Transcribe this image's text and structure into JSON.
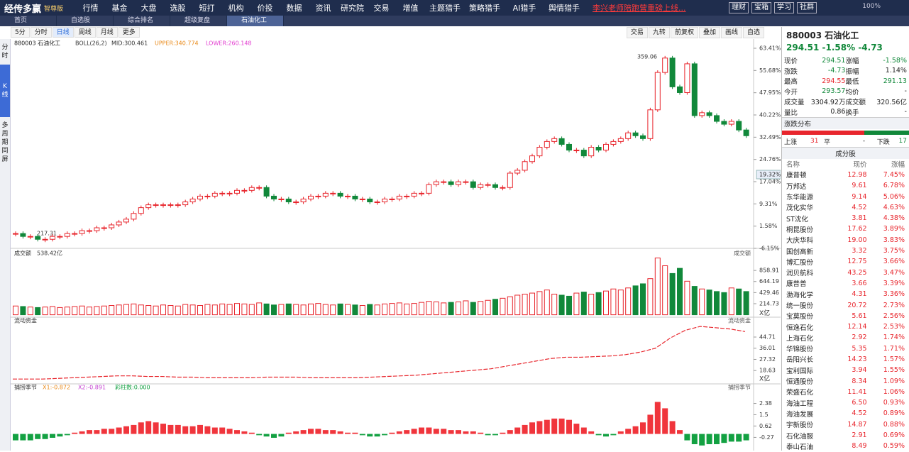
{
  "app": {
    "logo": "经传多赢",
    "edition": "智尊版",
    "menu": [
      "行情",
      "基金",
      "大盘",
      "选股",
      "短打",
      "机构",
      "价投",
      "数据",
      "资讯",
      "研究院",
      "交易",
      "增值",
      "主题猎手",
      "策略猎手",
      "AI猎手",
      "舆情猎手"
    ],
    "marquee": "李兴老师陪跑营重磅上线...",
    "buttons": [
      "理财",
      "宝箱",
      "学习",
      "社群"
    ],
    "zoom": "100%"
  },
  "tabs": [
    "首页",
    "自选股",
    "综合排名",
    "超级复盘",
    "石油化工"
  ],
  "toolbar": {
    "periods": [
      "5分",
      "分时",
      "日线",
      "周线",
      "月线",
      "更多"
    ],
    "tools": [
      "交易",
      "九转",
      "前复权",
      "叠加",
      "画线",
      "自选"
    ]
  },
  "sidebar": [
    "分时",
    "K线",
    "多周期同屏"
  ],
  "chart_data": [
    {
      "type": "candlestick",
      "title": "880003 石油化工",
      "indicator": "BOLL(26,2)",
      "mid": "MID:300.461",
      "upper": "UPPER:340.774",
      "lower": "LOWER:260.148",
      "high_label": "359.06",
      "low_label": "217.31",
      "last_label": "19.32%",
      "up_color": "#e8262d",
      "down_color": "#11883a",
      "values": [
        -1,
        -2,
        -2,
        -3,
        -3,
        -2,
        -2,
        -1,
        -1,
        0,
        0,
        1,
        1,
        2,
        3,
        4,
        6,
        8,
        9,
        9,
        9,
        9,
        9,
        10,
        11,
        12,
        12,
        13,
        13,
        13,
        14,
        14,
        15,
        15,
        12,
        11,
        11,
        10,
        10,
        11,
        12,
        12,
        13,
        13,
        12,
        12,
        11,
        11,
        10,
        10,
        11,
        11,
        12,
        12,
        13,
        13,
        16,
        17,
        17,
        16,
        17,
        17,
        15,
        16,
        16,
        15,
        15,
        20,
        21,
        24,
        26,
        29,
        31,
        32,
        30,
        28,
        28,
        26,
        29,
        28,
        30,
        31,
        32,
        34,
        33,
        32,
        42,
        55,
        60,
        50,
        48,
        58,
        40,
        41,
        40,
        38,
        37,
        38,
        35,
        33
      ],
      "ylim": [
        -6.15,
        63.41
      ],
      "yticks": [
        {
          "value": 63.41,
          "label": "63.41%"
        },
        {
          "value": 55.68,
          "label": "55.68%"
        },
        {
          "value": 47.95,
          "label": "47.95%"
        },
        {
          "value": 40.22,
          "label": "40.22%"
        },
        {
          "value": 32.49,
          "label": "32.49%"
        },
        {
          "value": 24.76,
          "label": "24.76%"
        },
        {
          "value": 17.04,
          "label": "17.04%"
        },
        {
          "value": 9.31,
          "label": "9.31%"
        },
        {
          "value": 1.58,
          "label": "1.58%"
        },
        {
          "value": -6.15,
          "label": "-6.15%"
        }
      ]
    },
    {
      "type": "volume",
      "title": "成交额",
      "total": "538.42亿",
      "right_title": "成交额",
      "unit": "X亿",
      "values": [
        170,
        160,
        150,
        140,
        150,
        160,
        140,
        150,
        160,
        170,
        150,
        160,
        170,
        180,
        190,
        200,
        210,
        190,
        180,
        170,
        190,
        180,
        170,
        200,
        190,
        180,
        200,
        190,
        210,
        200,
        220,
        210,
        200,
        230,
        210,
        190,
        200,
        210,
        200,
        190,
        210,
        220,
        200,
        190,
        210,
        200,
        190,
        180,
        200,
        190,
        210,
        220,
        230,
        210,
        220,
        240,
        260,
        250,
        230,
        240,
        250,
        270,
        240,
        260,
        280,
        300,
        320,
        350,
        380,
        400,
        420,
        450,
        480,
        400,
        380,
        360,
        420,
        440,
        400,
        430,
        460,
        500,
        480,
        520,
        560,
        600,
        700,
        1100,
        950,
        800,
        900,
        650,
        550,
        500,
        480,
        450,
        430,
        520,
        500,
        450
      ],
      "ylim": [
        0,
        1100
      ],
      "yticks": [
        858.91,
        644.19,
        429.46,
        214.73
      ]
    },
    {
      "type": "line",
      "title": "流动资金",
      "right_title": "流动资金",
      "unit": "X亿",
      "color": "#e8262d",
      "values": [
        12,
        12,
        12,
        12.5,
        13,
        13.5,
        14,
        14.5,
        14.5,
        14,
        14,
        13.5,
        13.5,
        13,
        13,
        13,
        13,
        13.5,
        13.5,
        13.5,
        13,
        13,
        13,
        13,
        13.5,
        14,
        14.5,
        15,
        16,
        17,
        18,
        19,
        20,
        22,
        24,
        26,
        28,
        29,
        29,
        29.5,
        30,
        31,
        33,
        36,
        44,
        50,
        53,
        52,
        51,
        49
      ],
      "ylim": [
        11,
        53
      ],
      "yticks": [
        44.71,
        36.01,
        27.32,
        18.63
      ]
    },
    {
      "type": "bar",
      "title": "捕捞季节",
      "x1": "X1:-0.872",
      "x2": "X2:-0.891",
      "bars": "彩柱数:0.000",
      "right_title": "捕捞季节",
      "up_color": "#f0353c",
      "down_color": "#13a142",
      "values": [
        -0.5,
        -0.5,
        -0.5,
        -0.4,
        -0.4,
        -0.3,
        -0.2,
        -0.1,
        0.1,
        0.2,
        0.3,
        0.3,
        0.4,
        0.4,
        0.5,
        0.6,
        0.7,
        0.9,
        1.0,
        0.9,
        0.8,
        0.7,
        0.7,
        0.6,
        0.6,
        0.7,
        0.6,
        0.5,
        0.5,
        0.4,
        0.3,
        0.2,
        0.1,
        -0.1,
        -0.2,
        -0.3,
        -0.2,
        0.1,
        0.2,
        0.3,
        0.4,
        0.4,
        0.3,
        0.3,
        0.2,
        0.1,
        0.1,
        -0.1,
        -0.2,
        -0.2,
        -0.1,
        0.1,
        0.2,
        0.3,
        0.4,
        0.5,
        0.5,
        0.4,
        0.4,
        0.3,
        0.3,
        0.2,
        0.2,
        0.1,
        -0.1,
        -0.1,
        0.1,
        0.3,
        0.5,
        0.7,
        0.9,
        1.0,
        1.1,
        1.2,
        1.2,
        1.1,
        0.8,
        0.5,
        0.2,
        -0.1,
        -0.2,
        -0.1,
        0.2,
        0.4,
        0.6,
        0.9,
        1.5,
        2.5,
        2.0,
        1.0,
        0.3,
        -0.5,
        -0.8,
        -0.9,
        -0.8,
        -0.8,
        -0.7,
        -0.6,
        -0.6,
        -0.5
      ],
      "ylim": [
        -1,
        3.43
      ],
      "yticks": [
        2.38,
        1.5,
        0.62,
        -0.27
      ]
    }
  ],
  "quote": {
    "code": "880003 石油化工",
    "price": "294.51",
    "pct": "-1.58%",
    "chg": "-4.73",
    "rows": [
      [
        {
          "t": "现价"
        },
        {
          "t": "294.51",
          "c": "#11883a"
        },
        {
          "t": "涨幅"
        },
        {
          "t": "-1.58%",
          "c": "#11883a"
        }
      ],
      [
        {
          "t": "涨跌"
        },
        {
          "t": "-4.73",
          "c": "#11883a"
        },
        {
          "t": "振幅"
        },
        {
          "t": "1.14%",
          "c": "#222"
        }
      ],
      [
        {
          "t": "最高"
        },
        {
          "t": "294.55",
          "c": "#e8262d"
        },
        {
          "t": "最低"
        },
        {
          "t": "291.13",
          "c": "#11883a"
        }
      ],
      [
        {
          "t": "今开"
        },
        {
          "t": "293.57",
          "c": "#11883a"
        },
        {
          "t": "均价"
        },
        {
          "t": "-",
          "c": "#222"
        }
      ],
      [
        {
          "t": "成交量"
        },
        {
          "t": "3304.92万",
          "c": "#222"
        },
        {
          "t": "成交额"
        },
        {
          "t": "320.56亿",
          "c": "#222"
        }
      ],
      [
        {
          "t": "量比"
        },
        {
          "t": "0.86",
          "c": "#222"
        },
        {
          "t": "换手"
        },
        {
          "t": "-",
          "c": "#222"
        }
      ]
    ],
    "dist_title": "涨跌分布",
    "up_label": "上涨",
    "up": 31,
    "flat_label": "平",
    "flat": "-",
    "down_label": "下跌",
    "down": 17
  },
  "components": {
    "title": "成分股",
    "header": [
      "名称",
      "现价",
      "涨幅"
    ],
    "rows": [
      [
        "康普顿",
        "12.98",
        "7.45%"
      ],
      [
        "万邦达",
        "9.61",
        "6.78%"
      ],
      [
        "东华能源",
        "9.14",
        "5.06%"
      ],
      [
        "茂化实华",
        "4.52",
        "4.63%"
      ],
      [
        "ST沈化",
        "3.81",
        "4.38%"
      ],
      [
        "桐昆股份",
        "17.62",
        "3.89%"
      ],
      [
        "大庆华科",
        "19.00",
        "3.83%"
      ],
      [
        "国创高新",
        "3.32",
        "3.75%"
      ],
      [
        "博汇股份",
        "12.75",
        "3.66%"
      ],
      [
        "润贝航科",
        "43.25",
        "3.47%"
      ],
      [
        "康普普",
        "3.66",
        "3.39%"
      ],
      [
        "渤海化学",
        "4.31",
        "3.36%"
      ],
      [
        "统一股份",
        "20.72",
        "2.73%"
      ],
      [
        "宝莫股份",
        "5.61",
        "2.56%"
      ],
      [
        "恒逸石化",
        "12.14",
        "2.53%"
      ],
      [
        "上海石化",
        "2.92",
        "1.74%"
      ],
      [
        "华锦股份",
        "5.35",
        "1.71%"
      ],
      [
        "岳阳兴长",
        "14.23",
        "1.57%"
      ],
      [
        "宝利国际",
        "3.94",
        "1.55%"
      ],
      [
        "恒通股份",
        "8.34",
        "1.09%"
      ],
      [
        "荣盛石化",
        "11.41",
        "1.06%"
      ],
      [
        "海油工程",
        "6.50",
        "0.93%"
      ],
      [
        "海油发展",
        "4.52",
        "0.89%"
      ],
      [
        "宇新股份",
        "14.87",
        "0.88%"
      ],
      [
        "石化油服",
        "2.91",
        "0.69%"
      ],
      [
        "泰山石油",
        "8.49",
        "0.59%"
      ]
    ]
  }
}
